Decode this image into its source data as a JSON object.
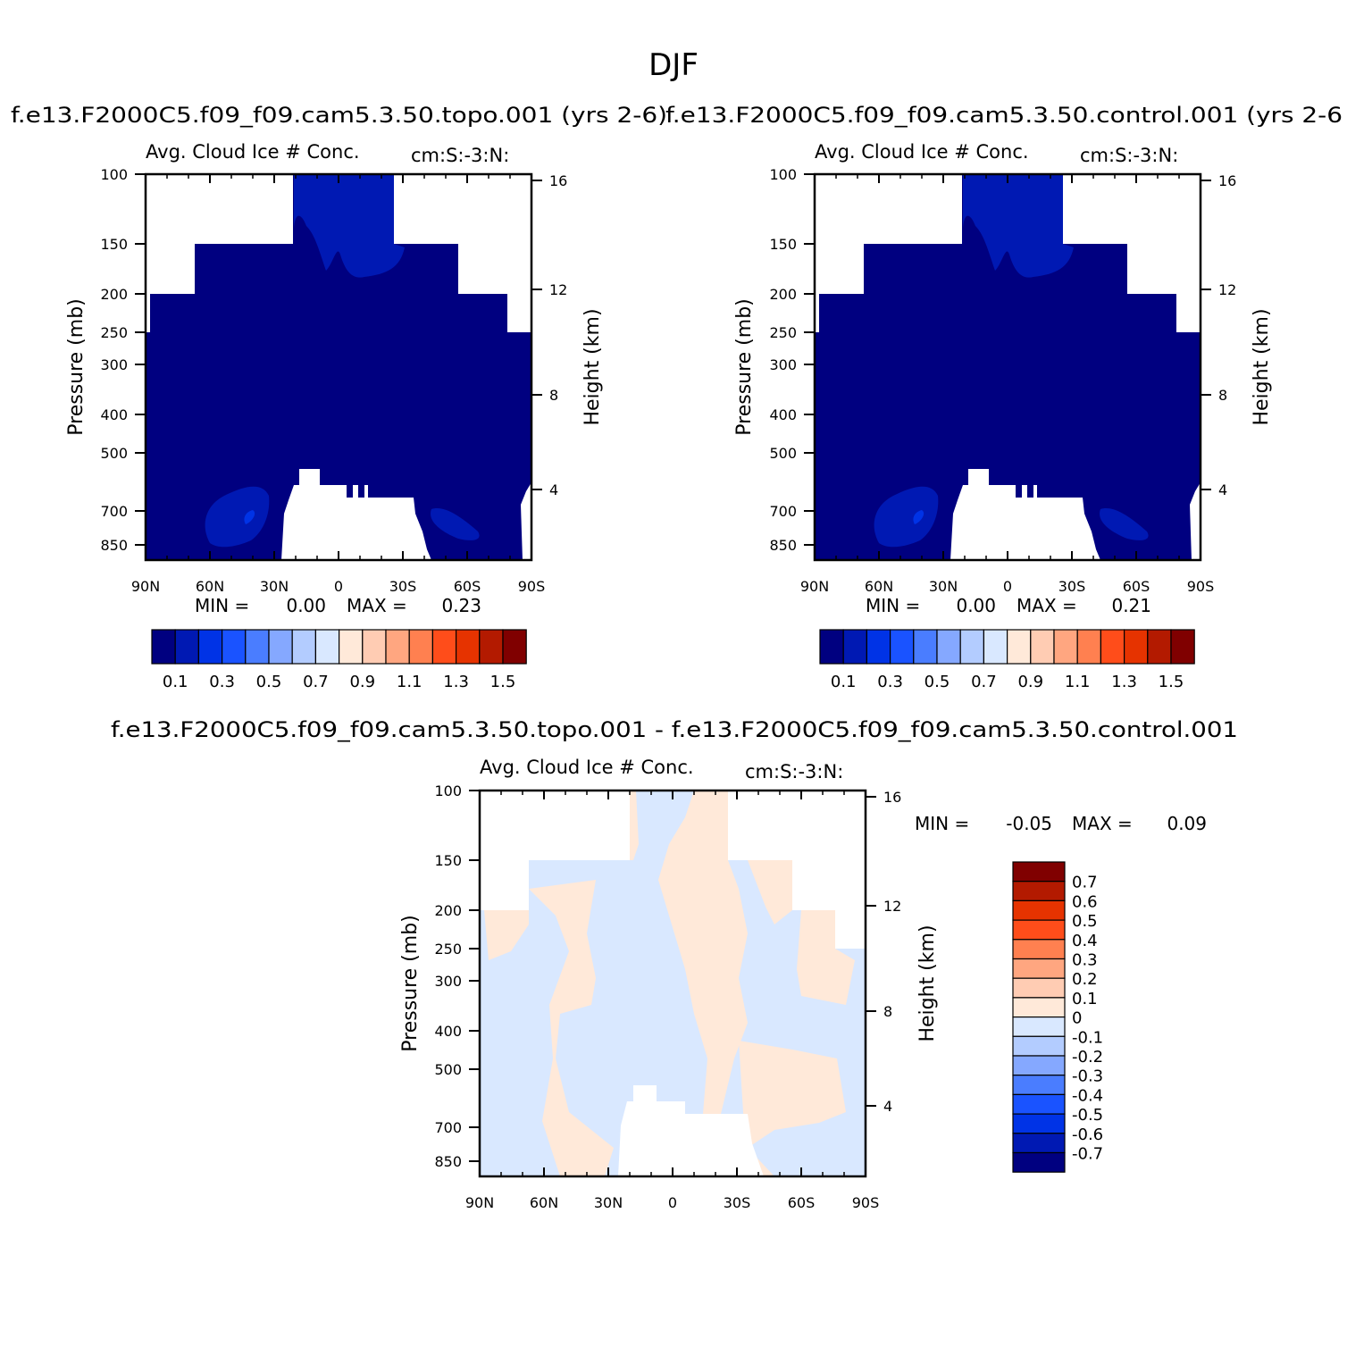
{
  "title": "DJF",
  "colors": {
    "seq_palette": [
      "#000080",
      "#0019b3",
      "#0033e6",
      "#1a53ff",
      "#4a7dff",
      "#85a8ff",
      "#b3ccff",
      "#d9e8ff",
      "#ffe9d9",
      "#ffccb3",
      "#ffa680",
      "#ff8050",
      "#ff4d1a",
      "#e63300",
      "#b31a00",
      "#800000"
    ],
    "diff_palette": [
      "#000080",
      "#0019b3",
      "#0033e6",
      "#1a53ff",
      "#4a7dff",
      "#85a8ff",
      "#b3ccff",
      "#d9e8ff",
      "#ffe9d9",
      "#ffccb3",
      "#ffa680",
      "#ff8050",
      "#ff4d1a",
      "#e63300",
      "#b31a00",
      "#800000"
    ],
    "missing": "#ffffff"
  },
  "chart_data": [
    {
      "type": "heatmap",
      "panel_title": "f.e13.F2000C5.f09_f09.cam5.3.50.topo.001 (yrs 2-6)",
      "left_title": "Avg. Cloud Ice # Conc.",
      "right_title": "cm:S:-3:N:",
      "ylabel": "Pressure (mb)",
      "ylabel_right": "Height (km)",
      "x_ticks": [
        "90N",
        "60N",
        "30N",
        "0",
        "30S",
        "60S",
        "90S"
      ],
      "y_ticks": [
        "100",
        "150",
        "200",
        "250",
        "300",
        "400",
        "500",
        "700",
        "850"
      ],
      "y_right_ticks": [
        "16",
        "12",
        "8",
        "4"
      ],
      "min_label": "MIN =",
      "min_value": "0.00",
      "max_label": "MAX =",
      "max_value": "0.23",
      "colorbar_labels": [
        "0.1",
        "0.3",
        "0.5",
        "0.7",
        "0.9",
        "1.1",
        "1.3",
        "1.5"
      ],
      "levels": [
        0.1,
        0.2,
        0.3,
        0.4,
        0.5,
        0.6,
        0.7,
        0.8,
        0.9,
        1.0,
        1.1,
        1.2,
        1.3,
        1.4,
        1.5
      ]
    },
    {
      "type": "heatmap",
      "panel_title": "f.e13.F2000C5.f09_f09.cam5.3.50.control.001 (yrs 2-6",
      "left_title": "Avg. Cloud Ice # Conc.",
      "right_title": "cm:S:-3:N:",
      "ylabel": "Pressure (mb)",
      "ylabel_right": "Height (km)",
      "x_ticks": [
        "90N",
        "60N",
        "30N",
        "0",
        "30S",
        "60S",
        "90S"
      ],
      "y_ticks": [
        "100",
        "150",
        "200",
        "250",
        "300",
        "400",
        "500",
        "700",
        "850"
      ],
      "y_right_ticks": [
        "16",
        "12",
        "8",
        "4"
      ],
      "min_label": "MIN =",
      "min_value": "0.00",
      "max_label": "MAX =",
      "max_value": "0.21",
      "colorbar_labels": [
        "0.1",
        "0.3",
        "0.5",
        "0.7",
        "0.9",
        "1.1",
        "1.3",
        "1.5"
      ],
      "levels": [
        0.1,
        0.2,
        0.3,
        0.4,
        0.5,
        0.6,
        0.7,
        0.8,
        0.9,
        1.0,
        1.1,
        1.2,
        1.3,
        1.4,
        1.5
      ]
    },
    {
      "type": "heatmap",
      "panel_title": "f.e13.F2000C5.f09_f09.cam5.3.50.topo.001 - f.e13.F2000C5.f09_f09.cam5.3.50.control.001",
      "left_title": "Avg. Cloud Ice # Conc.",
      "right_title": "cm:S:-3:N:",
      "ylabel": "Pressure (mb)",
      "ylabel_right": "Height (km)",
      "x_ticks": [
        "90N",
        "60N",
        "30N",
        "0",
        "30S",
        "60S",
        "90S"
      ],
      "y_ticks": [
        "100",
        "150",
        "200",
        "250",
        "300",
        "400",
        "500",
        "700",
        "850"
      ],
      "y_right_ticks": [
        "16",
        "12",
        "8",
        "4"
      ],
      "min_label": "MIN =",
      "min_value": "-0.05",
      "max_label": "MAX =",
      "max_value": "0.09",
      "colorbar_labels": [
        "0.7",
        "0.6",
        "0.5",
        "0.4",
        "0.3",
        "0.2",
        "0.1",
        "0",
        "-0.1",
        "-0.2",
        "-0.3",
        "-0.4",
        "-0.5",
        "-0.6",
        "-0.7"
      ],
      "levels": [
        -0.7,
        -0.6,
        -0.5,
        -0.4,
        -0.3,
        -0.2,
        -0.1,
        0,
        0.1,
        0.2,
        0.3,
        0.4,
        0.5,
        0.6,
        0.7
      ]
    }
  ]
}
